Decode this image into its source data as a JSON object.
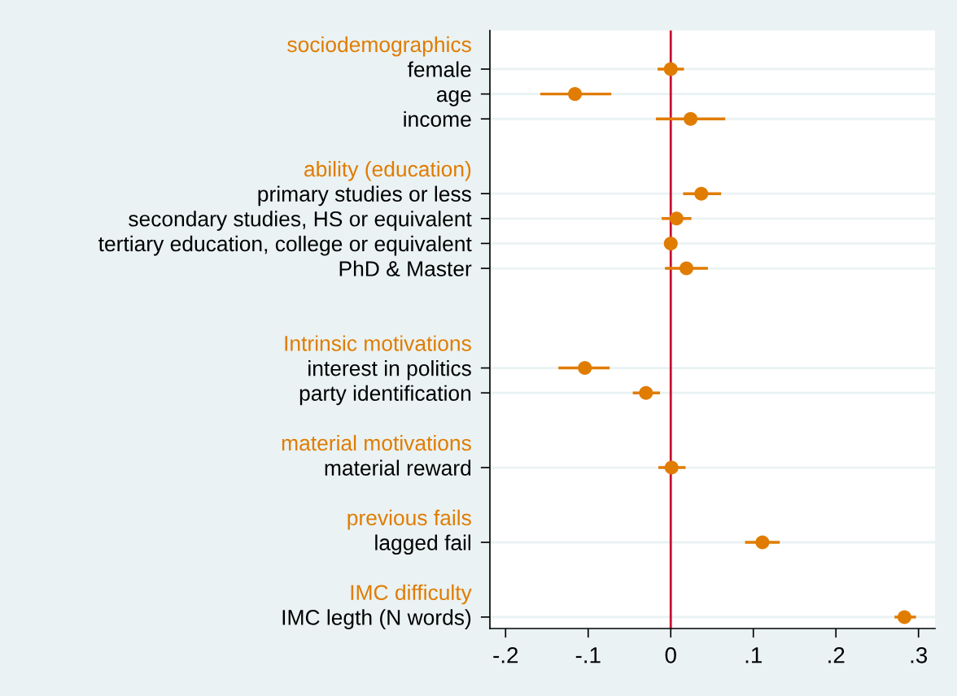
{
  "chart_data": {
    "type": "scatter",
    "orientation": "horizontal",
    "categories": [
      "sociodemographics",
      "female",
      "age",
      "income",
      null,
      "ability (education)",
      "primary studies or less",
      "secondary studies, HS or equivalent",
      "tertiary education, college or equivalent",
      "PhD & Master",
      null,
      null,
      "Intrinsic motivations",
      "interest in politics",
      "party identification",
      null,
      "material motivations",
      "material reward",
      null,
      "previous fails",
      "lagged fail",
      null,
      "IMC difficulty",
      "IMC legth (N words)"
    ],
    "series": [
      {
        "color": "#e07c00",
        "values": [
          null,
          0.0,
          -0.116,
          0.024,
          null,
          null,
          0.037,
          0.007,
          0.0,
          0.019,
          null,
          null,
          null,
          -0.104,
          -0.03,
          null,
          null,
          0.001,
          null,
          null,
          0.111,
          null,
          null,
          0.283
        ],
        "errors": [
          null,
          [
            -0.016,
            0.016
          ],
          [
            -0.158,
            -0.072
          ],
          [
            -0.018,
            0.066
          ],
          null,
          null,
          [
            0.015,
            0.061
          ],
          [
            -0.011,
            0.025
          ],
          null,
          [
            -0.007,
            0.045
          ],
          null,
          null,
          null,
          [
            -0.136,
            -0.074
          ],
          [
            -0.046,
            -0.013
          ],
          null,
          null,
          [
            -0.015,
            0.018
          ],
          null,
          null,
          [
            0.09,
            0.132
          ],
          null,
          null,
          [
            0.271,
            0.297
          ]
        ]
      }
    ],
    "xlim": [
      -0.219,
      0.32
    ],
    "xticks": [
      {
        "value": -0.2,
        "label": "-.2"
      },
      {
        "value": -0.1,
        "label": "-.1"
      },
      0,
      {
        "value": 0.1,
        "label": ".1"
      },
      {
        "value": 0.2,
        "label": ".2"
      },
      {
        "value": 0.3,
        "label": ".3"
      }
    ],
    "ref_lines": [
      {
        "axis": "x",
        "value": 0,
        "color": "#c8102e"
      }
    ],
    "grid": "y",
    "marker": "circle"
  }
}
